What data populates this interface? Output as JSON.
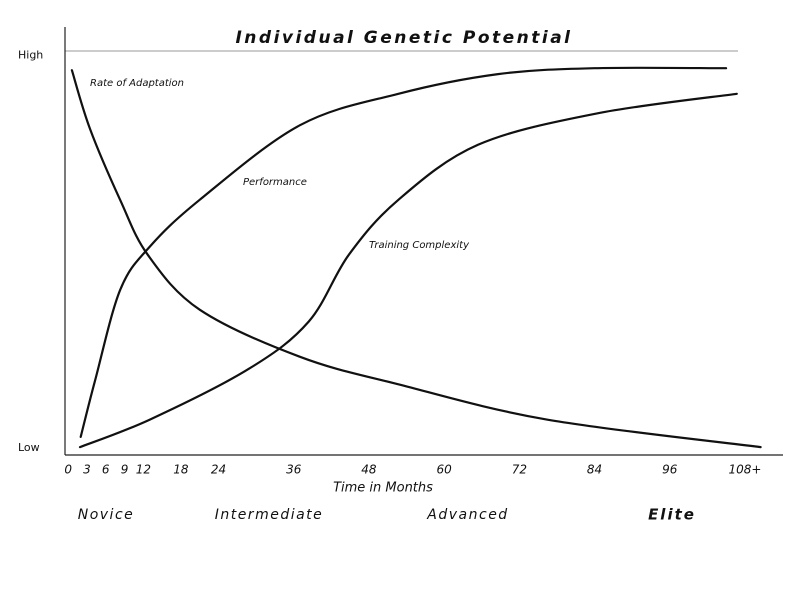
{
  "chart_data": {
    "type": "line",
    "title": "Individual Genetic Potential",
    "x_label": "Time in Months",
    "stages": [
      "Novice",
      "Intermediate",
      "Advanced",
      "Elite"
    ],
    "xlim": [
      -0.5,
      112
    ],
    "ylim": [
      -3,
      106
    ],
    "xticks": [
      0,
      3,
      6,
      9,
      12,
      18,
      24,
      36,
      48,
      60,
      72,
      84,
      96,
      {
        "value": 108,
        "label": "108+"
      }
    ],
    "yticks": [
      {
        "value": 100,
        "label": "High"
      },
      {
        "value": 0,
        "label": "Low"
      }
    ],
    "series": [
      {
        "name": "Rate of Adaptation",
        "color": "#111111",
        "x": [
          0.6,
          3.5,
          8.3,
          12.7,
          21,
          37,
          52.7,
          76.5,
          110.5
        ],
        "values": [
          95,
          80,
          62,
          48,
          34,
          22,
          15,
          6,
          -1
        ]
      },
      {
        "name": "Performance",
        "color": "#111111",
        "x": [
          2,
          4.3,
          8.3,
          13,
          21,
          37,
          52.7,
          68.6,
          84,
          105
        ],
        "values": [
          1.6,
          16,
          39,
          50,
          62,
          81,
          89,
          94,
          95.5,
          95.5
        ]
      },
      {
        "name": "Training Complexity",
        "color": "#111111",
        "x": [
          1.9,
          13,
          28.9,
          38.4,
          44.8,
          52.7,
          65.4,
          84.4,
          106.7
        ],
        "values": [
          -1,
          6,
          19,
          31,
          48,
          62,
          76,
          84,
          89
        ]
      }
    ]
  }
}
